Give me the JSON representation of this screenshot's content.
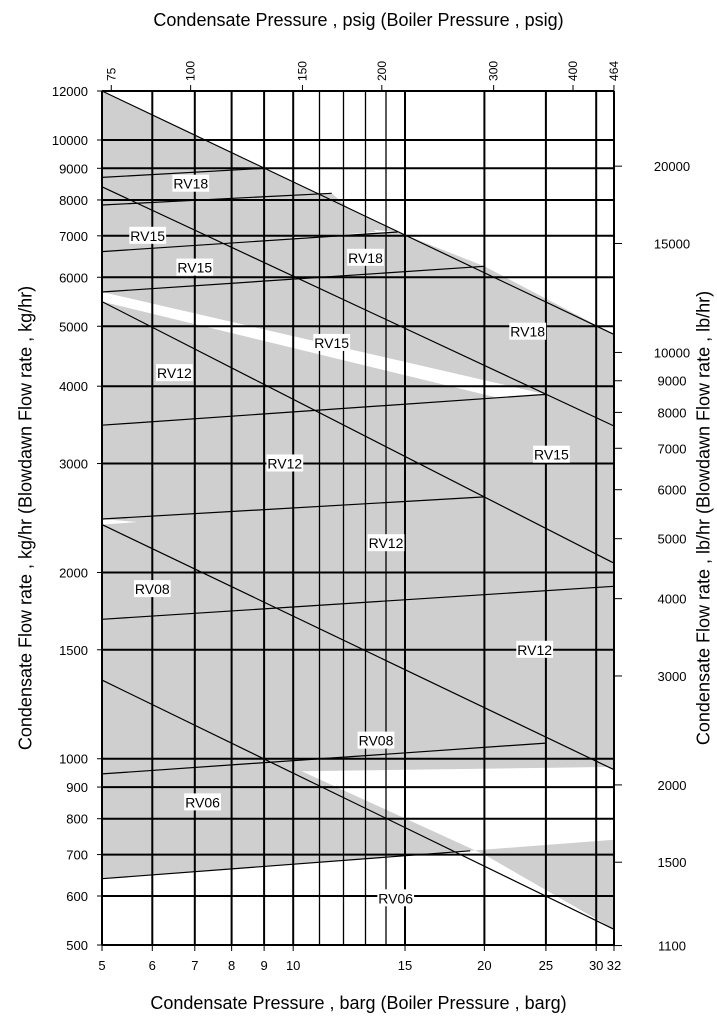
{
  "chart_data": {
    "type": "area",
    "title_top": "Condensate Pressure , psig (Boiler Pressure , psig)",
    "xlabel": "Condensate Pressure , barg (Boiler Pressure , barg)",
    "ylabel_left": "Condensate Flow rate , kg/hr (Blowdawn Flow rate , kg/hr)",
    "ylabel_right": "Condensate Flow rate , lb/hr (Blowdawn Flow rate , lb/hr)",
    "x_scale": "log",
    "y_scale": "log",
    "xlim": [
      5,
      32
    ],
    "ylim": [
      500,
      12000
    ],
    "x_ticks": [
      5,
      6,
      7,
      8,
      9,
      10,
      15,
      20,
      25,
      30,
      32
    ],
    "x_minor": [
      11,
      12,
      13,
      14
    ],
    "y_ticks": [
      500,
      600,
      700,
      800,
      900,
      1000,
      1500,
      2000,
      3000,
      4000,
      5000,
      6000,
      7000,
      8000,
      9000,
      10000,
      12000
    ],
    "top_ticks": [
      75,
      100,
      150,
      200,
      300,
      400,
      464
    ],
    "right_ticks": [
      1100,
      1500,
      2000,
      3000,
      4000,
      5000,
      6000,
      7000,
      8000,
      9000,
      10000,
      15000,
      20000
    ],
    "grid": true,
    "bands": [
      {
        "name": "RV06",
        "polygon": [
          [
            5,
            1340
          ],
          [
            20,
            700
          ],
          [
            32,
            530
          ],
          [
            32,
            740
          ],
          [
            19,
            710
          ],
          [
            5,
            640
          ]
        ]
      },
      {
        "name": "RV08",
        "polygon": [
          [
            5,
            1680
          ],
          [
            32,
            1900
          ],
          [
            32,
            960
          ],
          [
            5,
            2390
          ]
        ]
      },
      {
        "name": "RV08",
        "polygon": [
          [
            5,
            2390
          ],
          [
            20,
            2650
          ],
          [
            32,
            2060
          ],
          [
            32,
            970
          ],
          [
            5,
            945
          ]
        ]
      },
      {
        "name": "RV12",
        "polygon": [
          [
            5,
            5480
          ],
          [
            32,
            3450
          ],
          [
            5,
            3450
          ]
        ]
      },
      {
        "name": "RV12",
        "polygon": [
          [
            5,
            3460
          ],
          [
            25,
            3880
          ],
          [
            32,
            3470
          ],
          [
            32,
            2070
          ],
          [
            5,
            2440
          ]
        ]
      },
      {
        "name": "RV15",
        "polygon": [
          [
            5,
            6600
          ],
          [
            14.6,
            7100
          ],
          [
            20,
            6250
          ],
          [
            32,
            4850
          ],
          [
            32,
            3450
          ],
          [
            25,
            3880
          ],
          [
            5,
            5680
          ]
        ]
      },
      {
        "name": "RV15",
        "polygon": [
          [
            5,
            8400
          ],
          [
            11.5,
            8200
          ],
          [
            13.5,
            7100
          ],
          [
            5,
            6600
          ]
        ]
      },
      {
        "name": "RV18",
        "polygon": [
          [
            5,
            12000
          ],
          [
            9,
            9000
          ],
          [
            5,
            8700
          ]
        ]
      },
      {
        "name": "RV18",
        "polygon": [
          [
            5,
            8700
          ],
          [
            9,
            9000
          ],
          [
            14.6,
            7100
          ],
          [
            5,
            7850
          ]
        ]
      }
    ],
    "lines": [
      {
        "points": [
          [
            5,
            12000
          ],
          [
            32,
            4850
          ]
        ]
      },
      {
        "points": [
          [
            5,
            8400
          ],
          [
            32,
            3450
          ]
        ]
      },
      {
        "points": [
          [
            5,
            5480
          ],
          [
            32,
            2070
          ]
        ]
      },
      {
        "points": [
          [
            5,
            2390
          ],
          [
            32,
            960
          ]
        ]
      },
      {
        "points": [
          [
            5,
            1340
          ],
          [
            32,
            530
          ]
        ]
      },
      {
        "points": [
          [
            5,
            8700
          ],
          [
            9,
            9000
          ]
        ]
      },
      {
        "points": [
          [
            5,
            7850
          ],
          [
            11.5,
            8200
          ]
        ]
      },
      {
        "points": [
          [
            5,
            6600
          ],
          [
            14.6,
            7100
          ]
        ]
      },
      {
        "points": [
          [
            5,
            5680
          ],
          [
            20,
            6250
          ]
        ]
      },
      {
        "points": [
          [
            5,
            3460
          ],
          [
            25,
            3880
          ]
        ]
      },
      {
        "points": [
          [
            5,
            2440
          ],
          [
            20,
            2650
          ]
        ]
      },
      {
        "points": [
          [
            5,
            1680
          ],
          [
            32,
            1900
          ]
        ]
      },
      {
        "points": [
          [
            5,
            945
          ],
          [
            25,
            1060
          ]
        ]
      },
      {
        "points": [
          [
            5,
            640
          ],
          [
            19,
            710
          ]
        ]
      }
    ],
    "annotations": [
      {
        "text": "RV18",
        "x": 6.9,
        "y": 8500
      },
      {
        "text": "RV15",
        "x": 5.9,
        "y": 7000
      },
      {
        "text": "RV15",
        "x": 7.0,
        "y": 6220
      },
      {
        "text": "RV18",
        "x": 13.0,
        "y": 6450
      },
      {
        "text": "RV18",
        "x": 23.4,
        "y": 4900
      },
      {
        "text": "RV15",
        "x": 11.5,
        "y": 4700
      },
      {
        "text": "RV12",
        "x": 6.5,
        "y": 4200
      },
      {
        "text": "RV15",
        "x": 25.5,
        "y": 3100
      },
      {
        "text": "RV12",
        "x": 9.7,
        "y": 3000
      },
      {
        "text": "RV12",
        "x": 14.0,
        "y": 2230
      },
      {
        "text": "RV08",
        "x": 6.0,
        "y": 1880
      },
      {
        "text": "RV12",
        "x": 24.0,
        "y": 1500
      },
      {
        "text": "RV08",
        "x": 13.5,
        "y": 1070
      },
      {
        "text": "RV06",
        "x": 7.2,
        "y": 850
      },
      {
        "text": "RV06",
        "x": 14.5,
        "y": 595
      }
    ],
    "colors": {
      "band": "#cfcfcf",
      "grid": "#000000",
      "line": "#000000"
    }
  }
}
